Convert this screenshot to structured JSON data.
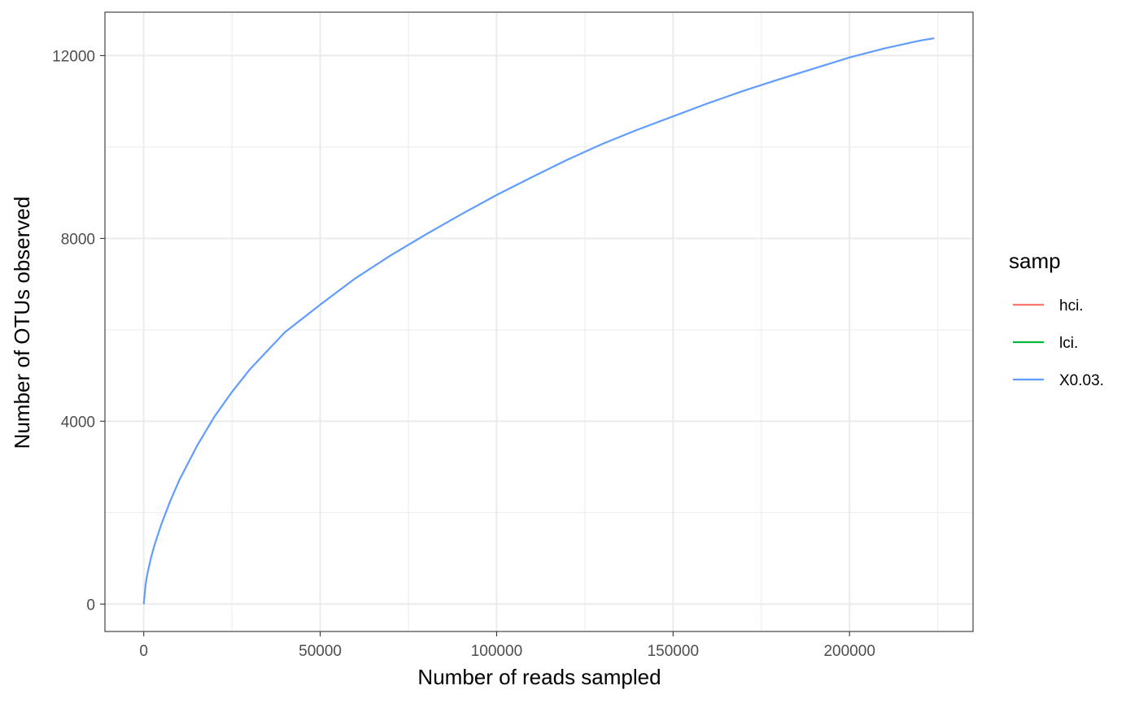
{
  "chart_data": {
    "type": "line",
    "xlabel": "Number of reads sampled",
    "ylabel": "Number of OTUs observed",
    "xlim": [
      -11000,
      235000
    ],
    "ylim": [
      -600,
      12950
    ],
    "x_ticks": [
      0,
      50000,
      100000,
      150000,
      200000
    ],
    "x_tick_labels": [
      "0",
      "50000",
      "100000",
      "150000",
      "200000"
    ],
    "x_minor_ticks": [
      25000,
      75000,
      125000,
      175000,
      225000
    ],
    "y_ticks": [
      0,
      4000,
      8000,
      12000
    ],
    "y_tick_labels": [
      "0",
      "4000",
      "8000",
      "12000"
    ],
    "y_minor_ticks": [
      2000,
      6000,
      10000
    ],
    "grid": true,
    "legend": {
      "title": "samp",
      "position": "right",
      "entries": [
        {
          "label": "hci.",
          "color": "#F8766D"
        },
        {
          "label": "lci.",
          "color": "#00BA38"
        },
        {
          "label": "X0.03.",
          "color": "#619CFF"
        }
      ]
    },
    "series": [
      {
        "name": "X0.03.",
        "color": "#619CFF",
        "x": [
          0,
          500,
          1000,
          2000,
          3000,
          5000,
          7500,
          10000,
          15000,
          20000,
          25000,
          30000,
          40000,
          50000,
          60000,
          70000,
          80000,
          90000,
          100000,
          110000,
          120000,
          130000,
          140000,
          150000,
          160000,
          170000,
          180000,
          190000,
          200000,
          210000,
          220000,
          224000
        ],
        "y": [
          0,
          420,
          650,
          1000,
          1280,
          1750,
          2250,
          2700,
          3450,
          4100,
          4640,
          5130,
          5950,
          6550,
          7130,
          7630,
          8090,
          8530,
          8950,
          9340,
          9720,
          10070,
          10380,
          10670,
          10960,
          11230,
          11480,
          11720,
          11960,
          12160,
          12330,
          12380
        ]
      },
      {
        "name": "hci.",
        "color": "#F8766D",
        "x": [],
        "y": []
      },
      {
        "name": "lci.",
        "color": "#00BA38",
        "x": [],
        "y": []
      }
    ]
  }
}
